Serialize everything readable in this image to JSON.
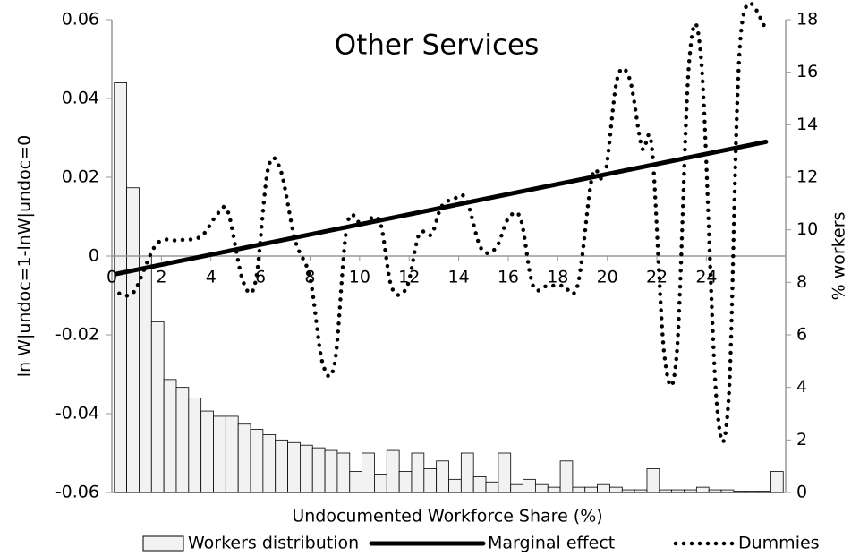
{
  "chart_data": {
    "type": "combo",
    "title": "Other Services",
    "x_label": "Undocumented Workforce Share (%)",
    "y_label": "ln W|undoc=1-lnW|undoc=0",
    "y2_label": "% workers",
    "xlim": [
      0,
      27.2
    ],
    "xticks": [
      0,
      2,
      4,
      6,
      8,
      10,
      12,
      14,
      16,
      18,
      20,
      22,
      24
    ],
    "ylim": [
      -0.06,
      0.06
    ],
    "yticks": [
      -0.06,
      -0.04,
      -0.02,
      0,
      0.02,
      0.04,
      0.06
    ],
    "y2lim": [
      0,
      18
    ],
    "y2ticks": [
      0,
      2,
      4,
      6,
      8,
      10,
      12,
      14,
      16,
      18
    ],
    "series": [
      {
        "name": "Workers distribution",
        "type": "histogram",
        "axis": "y2",
        "color": "#f2f2f2",
        "bins": [
          0.1,
          0.6,
          1.1,
          1.6,
          2.1,
          2.6,
          3.1,
          3.6,
          4.1,
          4.6,
          5.1,
          5.6,
          6.1,
          6.6,
          7.1,
          7.6,
          8.1,
          8.6,
          9.1,
          9.6,
          10.1,
          10.6,
          11.1,
          11.6,
          12.1,
          12.6,
          13.1,
          13.6,
          14.1,
          14.6,
          15.1,
          15.6,
          16.1,
          16.6,
          17.1,
          17.6,
          18.1,
          18.6,
          19.1,
          19.6,
          20.1,
          20.6,
          21.1,
          21.6,
          22.1,
          22.6,
          23.1,
          23.6,
          24.1,
          24.6,
          25.1,
          25.6,
          26.1,
          26.6,
          27.1
        ],
        "values": [
          15.6,
          11.6,
          9.0,
          6.5,
          4.3,
          4.0,
          3.6,
          3.1,
          2.9,
          2.9,
          2.6,
          2.4,
          2.2,
          2.0,
          1.9,
          1.8,
          1.7,
          1.6,
          1.5,
          0.8,
          1.5,
          0.7,
          1.6,
          0.8,
          1.5,
          0.9,
          1.2,
          0.5,
          1.5,
          0.6,
          0.4,
          1.5,
          0.3,
          0.5,
          0.3,
          0.2,
          1.2,
          0.2,
          0.2,
          0.3,
          0.2,
          0.1,
          0.1,
          0.9,
          0.1,
          0.1,
          0.1,
          0.2,
          0.1,
          0.1,
          0.05,
          0.05,
          0.05,
          0.8
        ]
      },
      {
        "name": "Marginal effect",
        "type": "line",
        "style": "solid",
        "color": "#000000",
        "x": [
          0.2,
          26.4
        ],
        "values": [
          -0.0045,
          0.029
        ]
      },
      {
        "name": "Dummies",
        "type": "line",
        "style": "dotted",
        "color": "#000000",
        "x": [
          0.3,
          0.9,
          1.8,
          2.7,
          3.6,
          4.3,
          4.7,
          5.3,
          5.8,
          6.3,
          6.8,
          7.4,
          8.0,
          8.5,
          9.0,
          9.5,
          10.1,
          10.8,
          11.3,
          11.9,
          12.4,
          12.9,
          13.3,
          13.8,
          14.3,
          14.9,
          15.5,
          16.0,
          16.5,
          17.0,
          17.6,
          18.2,
          18.8,
          19.4,
          19.9,
          20.4,
          20.9,
          21.4,
          21.8,
          22.3,
          22.8,
          23.3,
          23.8,
          24.4,
          24.9,
          25.4,
          26.4
        ],
        "values": [
          -0.0095,
          -0.009,
          0.003,
          0.004,
          0.005,
          0.011,
          0.011,
          -0.0065,
          -0.0065,
          0.022,
          0.022,
          0.004,
          -0.0055,
          -0.027,
          -0.027,
          0.008,
          0.008,
          0.009,
          -0.008,
          -0.008,
          0.0055,
          0.0055,
          0.0125,
          0.0145,
          0.0145,
          0.002,
          0.002,
          0.0095,
          0.0095,
          -0.0075,
          -0.0075,
          -0.0075,
          -0.0075,
          0.0205,
          0.0205,
          0.045,
          0.045,
          0.0275,
          0.0275,
          -0.025,
          -0.025,
          0.049,
          0.049,
          -0.036,
          -0.036,
          0.057,
          0.058
        ]
      }
    ]
  }
}
